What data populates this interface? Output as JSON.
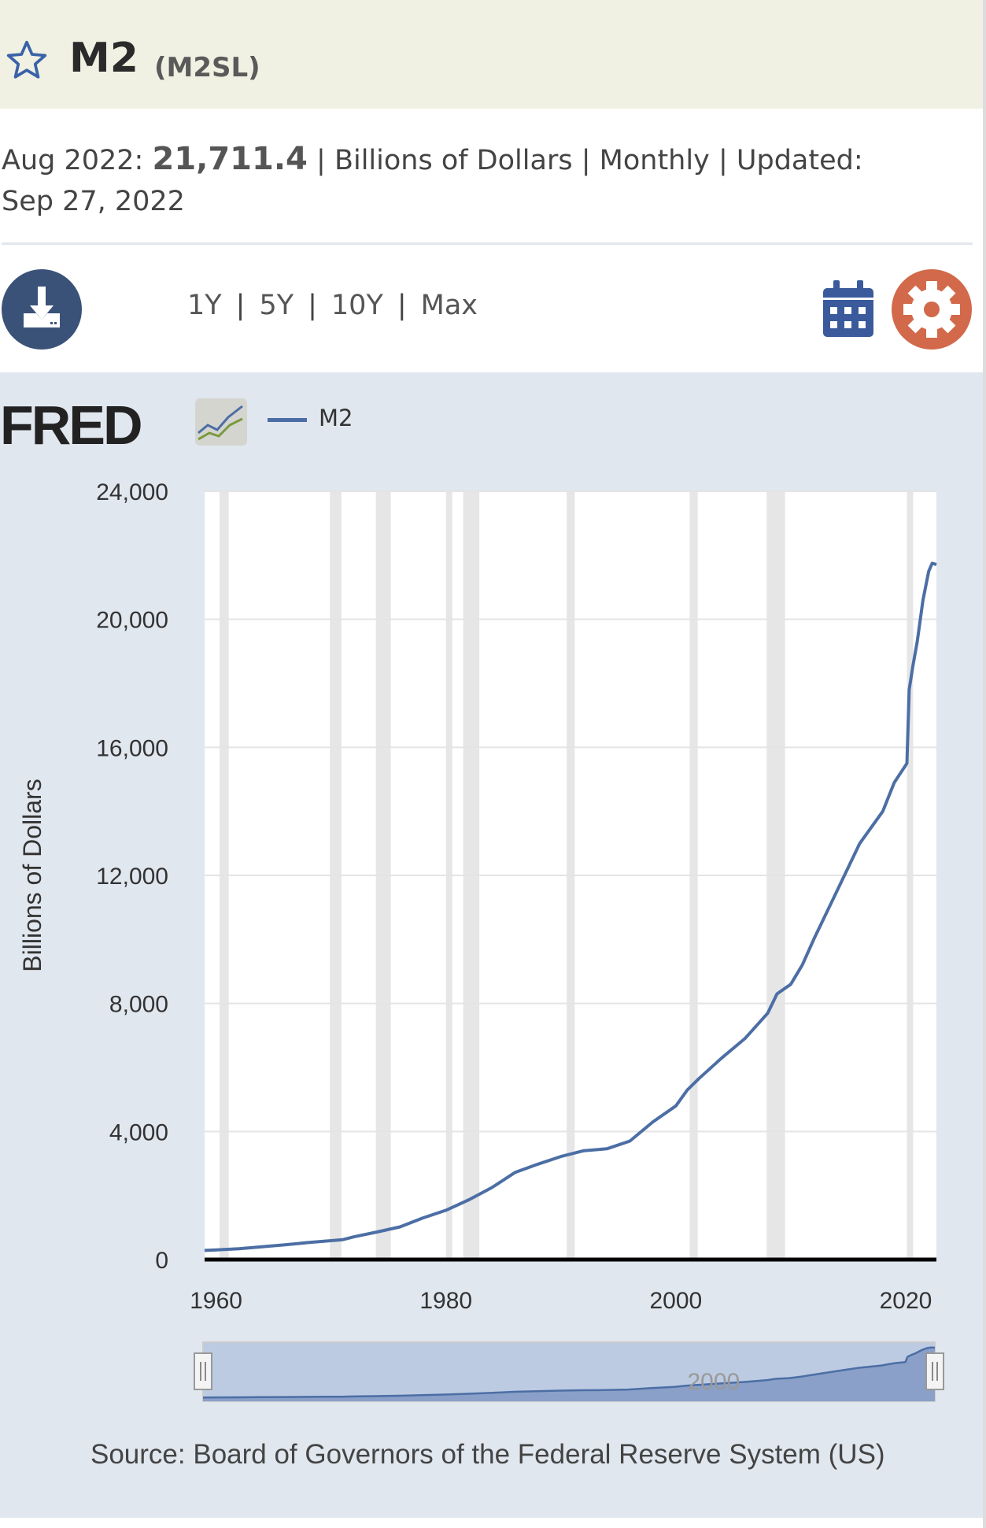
{
  "header": {
    "title": "M2",
    "series_id": "(M2SL)",
    "favorite_icon": "star-icon"
  },
  "info": {
    "date": "Aug 2022:",
    "value": "21,711.4",
    "units": "Billions of Dollars",
    "frequency": "Monthly",
    "updated_label": "Updated:",
    "updated_date": "Sep 27, 2022",
    "sep": "|"
  },
  "toolbar": {
    "ranges": [
      "1Y",
      "5Y",
      "10Y",
      "Max"
    ],
    "sep": "|",
    "download_icon": "download-icon",
    "calendar_icon": "calendar-icon",
    "settings_icon": "gear-icon"
  },
  "colors": {
    "line": "#4c6ea5",
    "header_bg": "#f1f1e3",
    "chart_bg": "#e1e7ef",
    "recession": "#e6e6e6",
    "download": "#3b5278",
    "settings": "#d2694a"
  },
  "logo": "FRED",
  "chart_data": {
    "type": "line",
    "title": "",
    "ylabel": "Billions of Dollars",
    "xlabel": "",
    "legend": [
      {
        "name": "M2",
        "position": "top-left"
      }
    ],
    "xlim": [
      1959,
      2022.67
    ],
    "ylim": [
      0,
      24000
    ],
    "yticks": [
      0,
      4000,
      8000,
      12000,
      16000,
      20000,
      24000
    ],
    "ytick_labels": [
      "0",
      "4,000",
      "8,000",
      "12,000",
      "16,000",
      "20,000",
      "24,000"
    ],
    "xticks": [
      1960,
      1980,
      2000,
      2020
    ],
    "xtick_labels": [
      "1960",
      "1980",
      "2000",
      "2020"
    ],
    "grid": true,
    "recessions": [
      [
        1960.3,
        1961.1
      ],
      [
        1969.9,
        1970.9
      ],
      [
        1973.9,
        1975.2
      ],
      [
        1980.0,
        1980.5
      ],
      [
        1981.5,
        1982.9
      ],
      [
        1990.5,
        1991.2
      ],
      [
        2001.2,
        2001.9
      ],
      [
        2007.9,
        2009.5
      ],
      [
        2020.1,
        2020.3
      ]
    ],
    "series": [
      {
        "name": "M2",
        "x": [
          1959,
          1960,
          1962,
          1964,
          1966,
          1968,
          1970,
          1971,
          1972,
          1974,
          1976,
          1978,
          1980,
          1982,
          1984,
          1986,
          1988,
          1990,
          1992,
          1994,
          1996,
          1998,
          2000,
          2001,
          2002,
          2004,
          2006,
          2008,
          2008.8,
          2010,
          2011,
          2012,
          2014,
          2016,
          2018,
          2019,
          2020.1,
          2020.3,
          2020.6,
          2021,
          2021.5,
          2022,
          2022.3,
          2022.67
        ],
        "values": [
          286,
          300,
          340,
          400,
          460,
          530,
          590,
          620,
          710,
          860,
          1020,
          1300,
          1540,
          1870,
          2250,
          2720,
          2980,
          3220,
          3400,
          3460,
          3700,
          4300,
          4800,
          5300,
          5650,
          6300,
          6900,
          7700,
          8300,
          8600,
          9200,
          10000,
          11500,
          13000,
          14000,
          14900,
          15500,
          17800,
          18500,
          19300,
          20600,
          21500,
          21750,
          21711
        ]
      }
    ],
    "navigator_label": "2000",
    "source": "Source: Board of Governors of the Federal Reserve System (US)"
  }
}
